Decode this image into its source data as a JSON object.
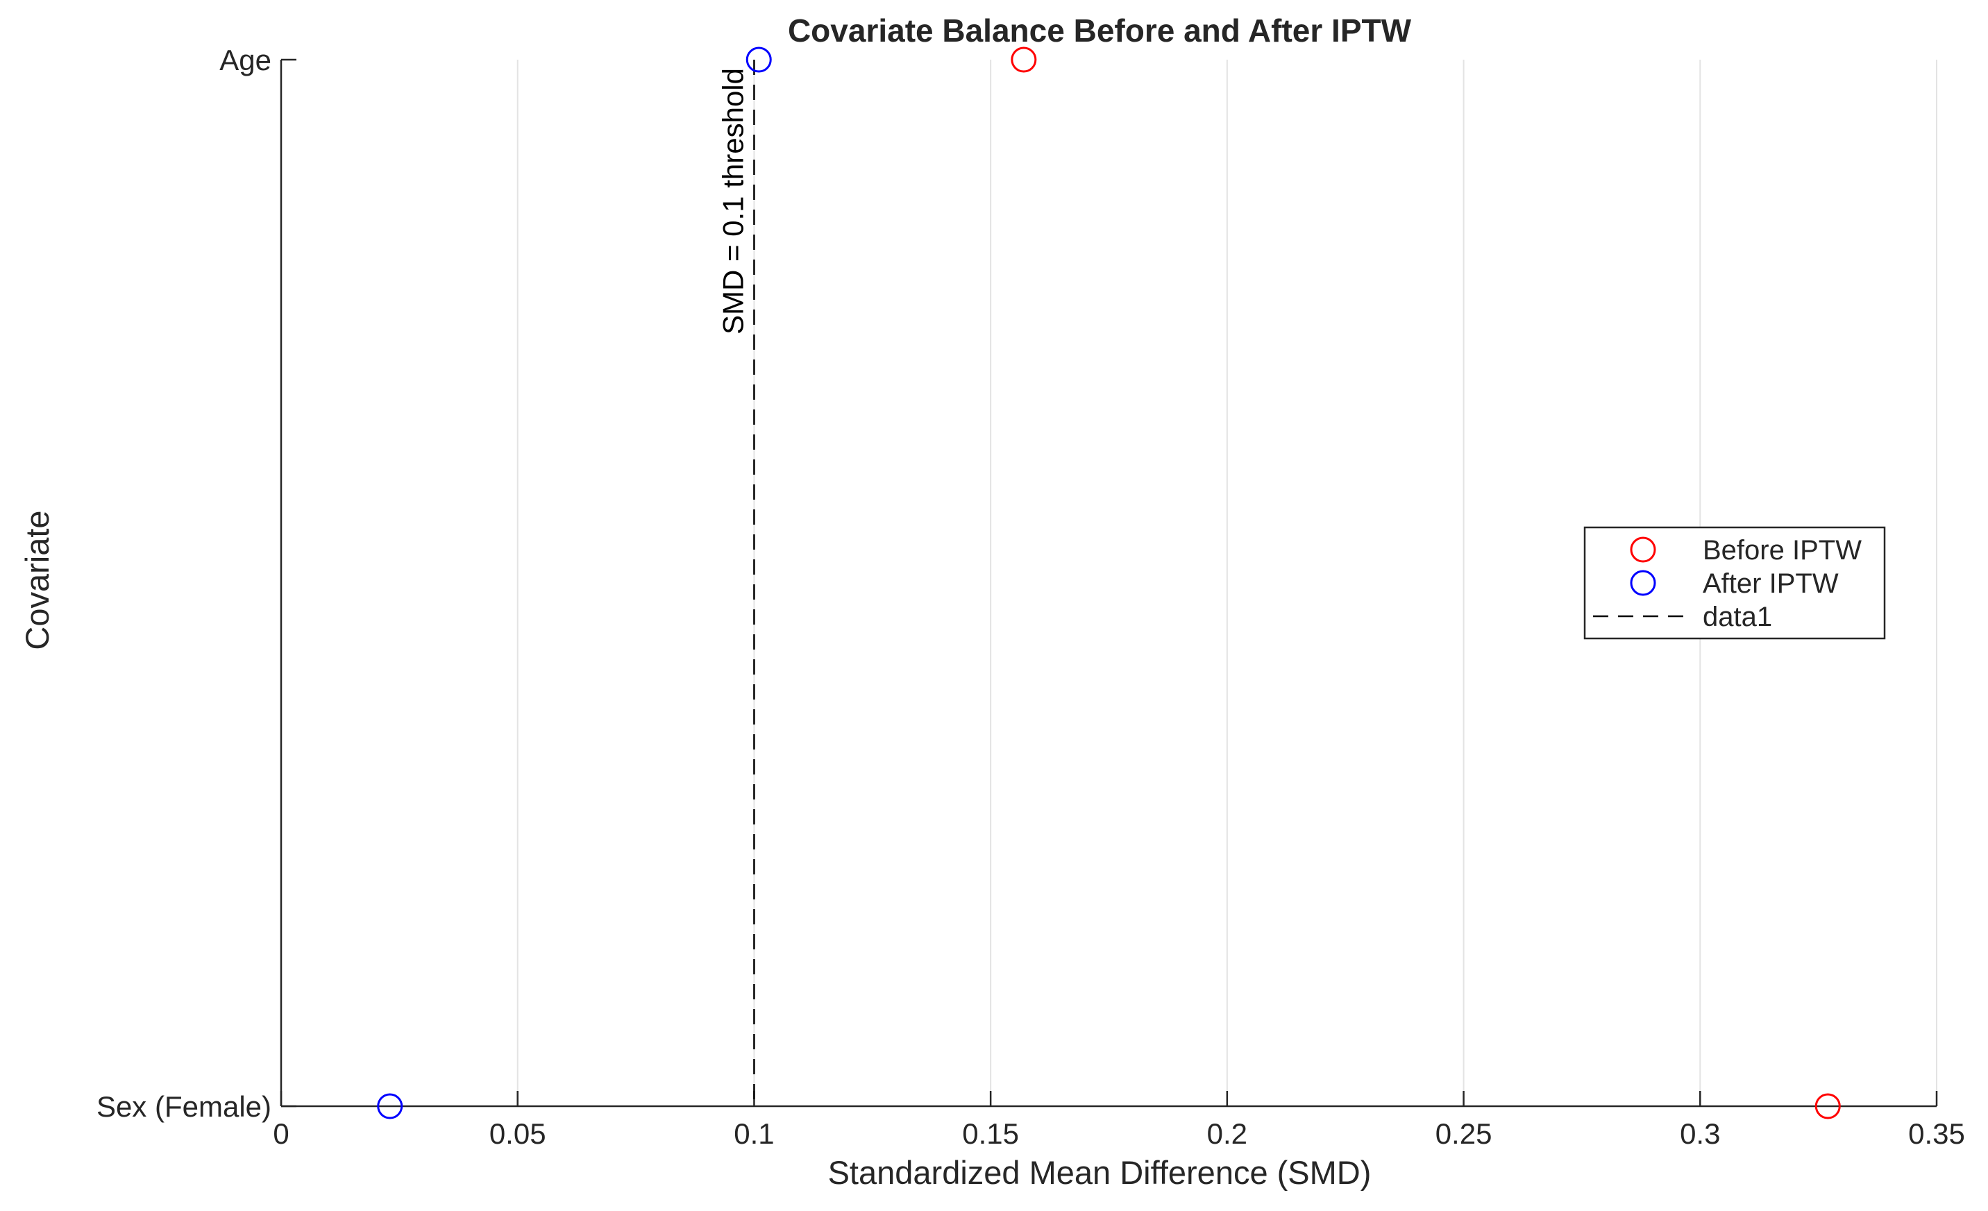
{
  "chart_data": {
    "type": "scatter",
    "title": "Covariate Balance Before and After IPTW",
    "xlabel": "Standardized Mean Difference (SMD)",
    "ylabel": "Covariate",
    "xlim": [
      0,
      0.35
    ],
    "xticks": [
      0,
      0.05,
      0.1,
      0.15,
      0.2,
      0.25,
      0.3,
      0.35
    ],
    "xtick_labels": [
      "0",
      "0.05",
      "0.1",
      "0.15",
      "0.2",
      "0.25",
      "0.3",
      "0.35"
    ],
    "categories": [
      "Sex (Female)",
      "Age"
    ],
    "grid": "x",
    "legend_position": "right",
    "series": [
      {
        "name": "Before IPTW",
        "color": "#ff0000",
        "marker": "circle-open",
        "points": [
          {
            "category": "Sex (Female)",
            "x": 0.327
          },
          {
            "category": "Age",
            "x": 0.157
          }
        ]
      },
      {
        "name": "After IPTW",
        "color": "#0000ff",
        "marker": "circle-open",
        "points": [
          {
            "category": "Sex (Female)",
            "x": 0.023
          },
          {
            "category": "Age",
            "x": 0.101
          }
        ]
      }
    ],
    "reference_line": {
      "name": "data1",
      "x": 0.1,
      "style": "dashed",
      "color": "#000000",
      "annotation": "SMD = 0.1 threshold"
    }
  }
}
